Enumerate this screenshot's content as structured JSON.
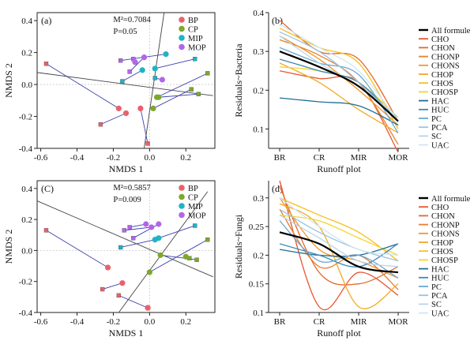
{
  "figure": {
    "colors": {
      "BP": "#e8616b",
      "CP": "#7ca82c",
      "MIP": "#1fb3c4",
      "MOP": "#b266e6",
      "segment": "#3a3fae"
    }
  },
  "chart_data": [
    {
      "type": "scatter",
      "panel": "(a)",
      "xlabel": "NMDS 1",
      "ylabel": "NMDS 2",
      "xlim": [
        -0.62,
        0.36
      ],
      "ylim": [
        -0.4,
        0.45
      ],
      "xticks": [
        "-0.6",
        "-0.4",
        "-0.2",
        "0.0",
        "0.2"
      ],
      "yticks": [
        "-0.4",
        "-0.2",
        "0.0",
        "0.2",
        "0.4"
      ],
      "stats": {
        "m2": "M²=0.7084",
        "p": "P=0.05"
      },
      "legend": [
        "BP",
        "CP",
        "MIP",
        "MOP"
      ],
      "vectors": [
        {
          "from": [
            -0.62,
            0.075
          ],
          "to": [
            0.35,
            -0.07
          ]
        },
        {
          "from": [
            -0.03,
            -0.4
          ],
          "to": [
            0.08,
            0.45
          ]
        }
      ],
      "pairs": [
        {
          "sq": [
            -0.57,
            0.13
          ],
          "dot": [
            -0.17,
            -0.15
          ]
        },
        {
          "sq": [
            -0.27,
            -0.25
          ],
          "dot": [
            -0.13,
            -0.18
          ]
        },
        {
          "sq": [
            -0.01,
            -0.37
          ],
          "dot": [
            -0.05,
            -0.15
          ]
        },
        {
          "sq": [
            -0.09,
            0.16
          ],
          "dot": [
            -0.08,
            0.14
          ]
        },
        {
          "sq": [
            -0.11,
            0.08
          ],
          "dot": [
            -0.03,
            0.17
          ]
        },
        {
          "sq": [
            -0.15,
            0.02
          ],
          "dot": [
            -0.04,
            0.09
          ]
        },
        {
          "sq": [
            0.25,
            0.16
          ],
          "dot": [
            0.03,
            0.1
          ]
        },
        {
          "sq": [
            0.03,
            0.04
          ],
          "dot": [
            0.07,
            0.03
          ]
        },
        {
          "sq": [
            -0.16,
            0.15
          ],
          "dot": [
            0.09,
            0.19
          ]
        },
        {
          "sq": [
            0.32,
            0.07
          ],
          "dot": [
            0.04,
            -0.08
          ]
        },
        {
          "sq": [
            0.27,
            -0.06
          ],
          "dot": [
            0.05,
            -0.08
          ]
        },
        {
          "sq": [
            0.23,
            -0.03
          ],
          "dot": [
            0.02,
            -0.15
          ]
        }
      ],
      "square_colors": [
        "BP",
        "BP",
        "BP",
        "MOP",
        "MOP",
        "MIP",
        "MIP",
        "MIP",
        "MOP",
        "CP",
        "CP",
        "CP"
      ],
      "dot_colors": [
        "BP",
        "BP",
        "BP",
        "MOP",
        "MOP",
        "MIP",
        "MIP",
        "MOP",
        "MIP",
        "CP",
        "CP",
        "CP"
      ]
    },
    {
      "type": "scatter",
      "panel": "(C)",
      "xlabel": "NMDS 1",
      "ylabel": "NMDS 2",
      "xlim": [
        -0.62,
        0.36
      ],
      "ylim": [
        -0.4,
        0.45
      ],
      "xticks": [
        "-0.6",
        "-0.4",
        "-0.2",
        "0.0",
        "0.2"
      ],
      "yticks": [
        "-0.4",
        "-0.2",
        "0.0",
        "0.2",
        "0.4"
      ],
      "stats": {
        "m2": "M²=0.5857",
        "p": "P=0.009"
      },
      "legend": [
        "BP",
        "CP",
        "MIP",
        "MOP"
      ],
      "vectors": [
        {
          "from": [
            -0.62,
            0.32
          ],
          "to": [
            0.35,
            -0.17
          ]
        },
        {
          "from": [
            -0.17,
            -0.4
          ],
          "to": [
            0.32,
            0.38
          ]
        }
      ],
      "pairs": [
        {
          "sq": [
            -0.57,
            0.13
          ],
          "dot": [
            -0.23,
            -0.11
          ]
        },
        {
          "sq": [
            -0.26,
            -0.25
          ],
          "dot": [
            -0.15,
            -0.21
          ]
        },
        {
          "sq": [
            -0.17,
            -0.29
          ],
          "dot": [
            -0.01,
            -0.37
          ]
        },
        {
          "sq": [
            -0.01,
            -0.37
          ],
          "dot": [
            -0.01,
            -0.37
          ]
        },
        {
          "sq": [
            -0.11,
            0.15
          ],
          "dot": [
            -0.02,
            0.17
          ]
        },
        {
          "sq": [
            -0.14,
            0.13
          ],
          "dot": [
            0.01,
            0.15
          ]
        },
        {
          "sq": [
            -0.09,
            0.08
          ],
          "dot": [
            0.05,
            0.17
          ]
        },
        {
          "sq": [
            -0.16,
            0.02
          ],
          "dot": [
            0.03,
            0.07
          ]
        },
        {
          "sq": [
            0.25,
            0.16
          ],
          "dot": [
            0.05,
            0.08
          ]
        },
        {
          "sq": [
            0.32,
            0.07
          ],
          "dot": [
            0.0,
            -0.14
          ]
        },
        {
          "sq": [
            0.26,
            -0.06
          ],
          "dot": [
            0.06,
            -0.03
          ]
        },
        {
          "sq": [
            0.22,
            -0.05
          ],
          "dot": [
            0.2,
            -0.04
          ]
        }
      ],
      "square_colors": [
        "BP",
        "BP",
        "BP",
        "BP",
        "MOP",
        "MOP",
        "MOP",
        "MIP",
        "MIP",
        "CP",
        "CP",
        "CP"
      ],
      "dot_colors": [
        "BP",
        "BP",
        "BP",
        "BP",
        "MOP",
        "MOP",
        "MOP",
        "MIP",
        "MIP",
        "CP",
        "CP",
        "CP"
      ]
    },
    {
      "type": "line",
      "panel": "(b)",
      "xlabel": "Runoff plot",
      "ylabel": "Residuals~Bacteria",
      "categories": [
        "BR",
        "CR",
        "MIR",
        "MOR"
      ],
      "ylim": [
        0.05,
        0.4
      ],
      "yticks": [
        0.1,
        0.2,
        0.3,
        0.4
      ],
      "series": [
        {
          "name": "All formule",
          "color": "#000000",
          "width": 2.2,
          "values": [
            0.3,
            0.26,
            0.21,
            0.12
          ]
        },
        {
          "name": "CHO",
          "color": "#e8552f",
          "width": 1.3,
          "values": [
            0.25,
            0.23,
            0.22,
            0.04
          ]
        },
        {
          "name": "CHON",
          "color": "#e26a2c",
          "width": 1.3,
          "values": [
            0.38,
            0.3,
            0.28,
            0.12
          ]
        },
        {
          "name": "CHONP",
          "color": "#ea7f2c",
          "width": 1.3,
          "values": [
            0.33,
            0.29,
            0.22,
            0.06
          ]
        },
        {
          "name": "CHONS",
          "color": "#f0962a",
          "width": 1.3,
          "values": [
            0.34,
            0.28,
            0.2,
            0.11
          ]
        },
        {
          "name": "CHOP",
          "color": "#f3aa25",
          "width": 1.3,
          "values": [
            0.27,
            0.22,
            0.15,
            0.09
          ]
        },
        {
          "name": "CHOS",
          "color": "#f5c020",
          "width": 1.3,
          "values": [
            0.36,
            0.31,
            0.27,
            0.1
          ]
        },
        {
          "name": "CHOSP",
          "color": "#f4d62a",
          "width": 1.3,
          "values": [
            0.26,
            0.25,
            0.22,
            0.13
          ]
        },
        {
          "name": "HAC",
          "color": "#1f6e96",
          "width": 1.3,
          "values": [
            0.18,
            0.17,
            0.16,
            0.11
          ]
        },
        {
          "name": "HUC",
          "color": "#3c8ab8",
          "width": 1.3,
          "values": [
            0.28,
            0.25,
            0.22,
            0.12
          ]
        },
        {
          "name": "PC",
          "color": "#6aa8d2",
          "width": 1.3,
          "values": [
            0.31,
            0.27,
            0.24,
            0.09
          ]
        },
        {
          "name": "PCA",
          "color": "#98c3e2",
          "width": 1.3,
          "values": [
            0.35,
            0.3,
            0.22,
            0.12
          ]
        },
        {
          "name": "SC",
          "color": "#b8d5ec",
          "width": 1.3,
          "values": [
            0.34,
            0.27,
            0.21,
            0.13
          ]
        },
        {
          "name": "UAC",
          "color": "#d3e5f4",
          "width": 1.3,
          "values": [
            0.37,
            0.31,
            0.25,
            0.12
          ]
        }
      ]
    },
    {
      "type": "line",
      "panel": "(d)",
      "xlabel": "Runoff plot",
      "ylabel": "Residuals~Fungi",
      "categories": [
        "BR",
        "CR",
        "MIR",
        "MOR"
      ],
      "ylim": [
        0.1,
        0.33
      ],
      "yticks": [
        0.1,
        0.15,
        0.2,
        0.25,
        0.3
      ],
      "series": [
        {
          "name": "All formule",
          "color": "#000000",
          "width": 2.2,
          "values": [
            0.24,
            0.22,
            0.18,
            0.17
          ]
        },
        {
          "name": "CHO",
          "color": "#e8552f",
          "width": 1.3,
          "values": [
            0.33,
            0.11,
            0.17,
            0.13
          ]
        },
        {
          "name": "CHON",
          "color": "#e26a2c",
          "width": 1.3,
          "values": [
            0.32,
            0.17,
            0.15,
            0.18
          ]
        },
        {
          "name": "CHONP",
          "color": "#ea7f2c",
          "width": 1.3,
          "values": [
            0.28,
            0.18,
            0.2,
            0.14
          ]
        },
        {
          "name": "CHONS",
          "color": "#f0962a",
          "width": 1.3,
          "values": [
            0.3,
            0.21,
            0.19,
            0.16
          ]
        },
        {
          "name": "CHOP",
          "color": "#f3aa25",
          "width": 1.3,
          "values": [
            0.29,
            0.25,
            0.11,
            0.15
          ]
        },
        {
          "name": "CHOS",
          "color": "#f5c020",
          "width": 1.3,
          "values": [
            0.3,
            0.27,
            0.24,
            0.19
          ]
        },
        {
          "name": "CHOSP",
          "color": "#f4d62a",
          "width": 1.3,
          "values": [
            0.27,
            0.26,
            0.23,
            0.2
          ]
        },
        {
          "name": "HAC",
          "color": "#1f6e96",
          "width": 1.3,
          "values": [
            0.21,
            0.2,
            0.2,
            0.22
          ]
        },
        {
          "name": "HUC",
          "color": "#3c8ab8",
          "width": 1.3,
          "values": [
            0.22,
            0.2,
            0.18,
            0.22
          ]
        },
        {
          "name": "PC",
          "color": "#6aa8d2",
          "width": 1.3,
          "values": [
            0.26,
            0.19,
            0.2,
            0.16
          ]
        },
        {
          "name": "PCA",
          "color": "#98c3e2",
          "width": 1.3,
          "values": [
            0.28,
            0.24,
            0.21,
            0.19
          ]
        },
        {
          "name": "SC",
          "color": "#b8d5ec",
          "width": 1.3,
          "values": [
            0.27,
            0.23,
            0.19,
            0.18
          ]
        },
        {
          "name": "UAC",
          "color": "#d3e5f4",
          "width": 1.3,
          "values": [
            0.3,
            0.25,
            0.21,
            0.2
          ]
        }
      ]
    }
  ]
}
